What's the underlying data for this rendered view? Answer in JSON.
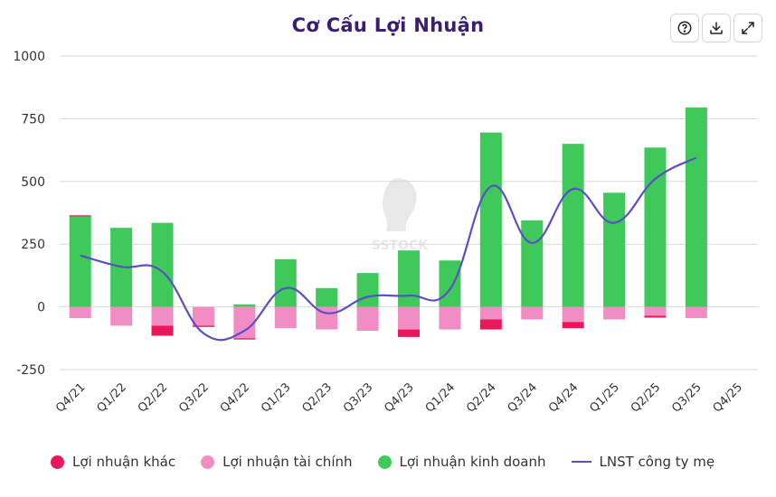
{
  "chart_data": {
    "type": "bar",
    "title": "Cơ Cấu Lợi Nhuận",
    "categories": [
      "Q4/21",
      "Q1/22",
      "Q2/22",
      "Q3/22",
      "Q4/22",
      "Q1/23",
      "Q2/23",
      "Q3/23",
      "Q4/23",
      "Q1/24",
      "Q2/24",
      "Q3/24",
      "Q4/24",
      "Q1/25",
      "Q2/25",
      "Q3/25",
      "Q4/25"
    ],
    "series": [
      {
        "name": "Lợi nhuận khác",
        "type": "bar",
        "color": "#e8185a",
        "values": [
          5,
          0,
          -40,
          -5,
          -5,
          0,
          0,
          0,
          -30,
          0,
          -40,
          0,
          -25,
          0,
          -8,
          0,
          null
        ]
      },
      {
        "name": "Lợi nhuận tài chính",
        "type": "bar",
        "color": "#f28cc4",
        "values": [
          -45,
          -75,
          -75,
          -75,
          -125,
          -85,
          -90,
          -95,
          -90,
          -90,
          -50,
          -50,
          -60,
          -50,
          -35,
          -45,
          null
        ]
      },
      {
        "name": "Lợi nhuận kinh doanh",
        "type": "bar",
        "color": "#3ec95a",
        "values": [
          360,
          315,
          335,
          0,
          10,
          190,
          75,
          135,
          225,
          185,
          695,
          345,
          650,
          455,
          635,
          795,
          null
        ]
      },
      {
        "name": "LNST công ty mẹ",
        "type": "line",
        "color": "#5b4fc4",
        "values": [
          205,
          160,
          140,
          -105,
          -95,
          75,
          -25,
          40,
          45,
          70,
          480,
          255,
          470,
          335,
          510,
          595,
          null
        ]
      }
    ],
    "ylim": [
      -250,
      1000
    ],
    "yticks": [
      -250,
      0,
      250,
      500,
      750,
      1000
    ],
    "ytick_labels": [
      "-250",
      "0",
      "250",
      "500",
      "750",
      "1000"
    ],
    "grid": "horizontal",
    "legend_position": "bottom",
    "watermark": "SSTOCK"
  },
  "toolbar": {
    "help_icon": "question-circle-icon",
    "download_icon": "download-icon",
    "expand_icon": "expand-icon"
  }
}
